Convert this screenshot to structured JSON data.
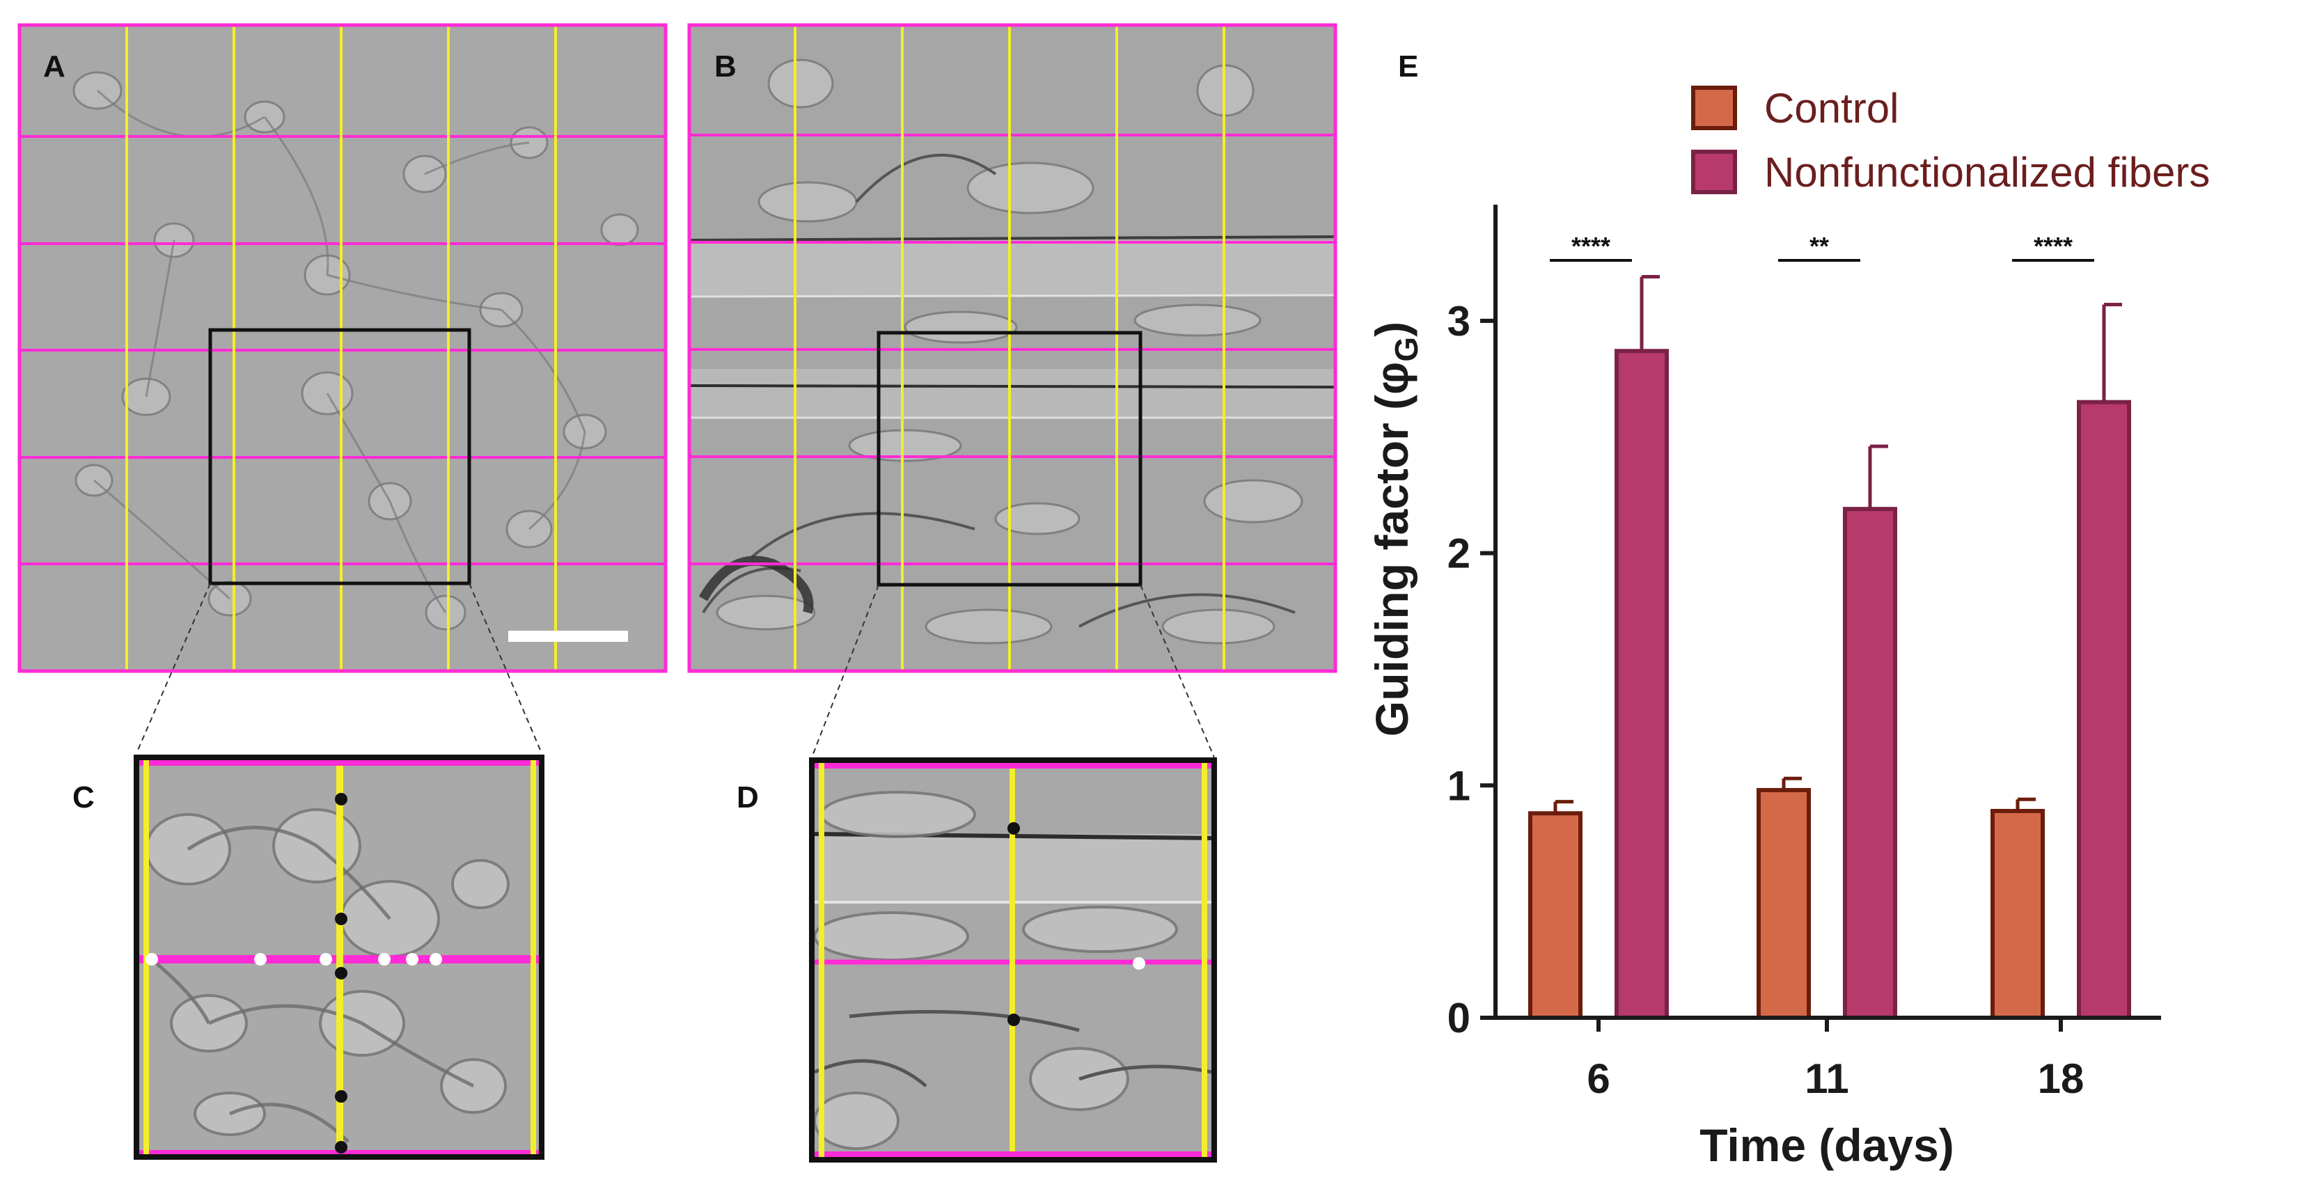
{
  "panels": {
    "A": "A",
    "B": "B",
    "C": "C",
    "D": "D",
    "E": "E"
  },
  "colors": {
    "grid_magenta": "#ff2bd6",
    "grid_yellow": "#f2ee2a",
    "control": "#d4694a",
    "control_edge": "#6b1d0c",
    "fibers": "#b83a6a",
    "fibers_edge": "#7a2246",
    "micro_bg": "#a9a9a9"
  },
  "chart_data": {
    "type": "bar",
    "title": "",
    "categories": [
      "6",
      "11",
      "18"
    ],
    "series": [
      {
        "name": "Control",
        "values": [
          0.88,
          0.98,
          0.89
        ],
        "errors": [
          0.05,
          0.05,
          0.05
        ],
        "color": "#d4694a"
      },
      {
        "name": "Nonfunctionalized fibers",
        "values": [
          2.87,
          2.19,
          2.65
        ],
        "errors": [
          0.32,
          0.27,
          0.42
        ],
        "color": "#b83a6a"
      }
    ],
    "xlabel": "Time (days)",
    "ylabel_main": "Guiding factor (φ",
    "ylabel_sub": "G",
    "ylabel_end": ")",
    "ylim": [
      0,
      3.5
    ],
    "yticks": [
      "0",
      "1",
      "2",
      "3"
    ],
    "significance": [
      "****",
      "**",
      "****"
    ],
    "legend_position": "top-right",
    "grid": false
  }
}
